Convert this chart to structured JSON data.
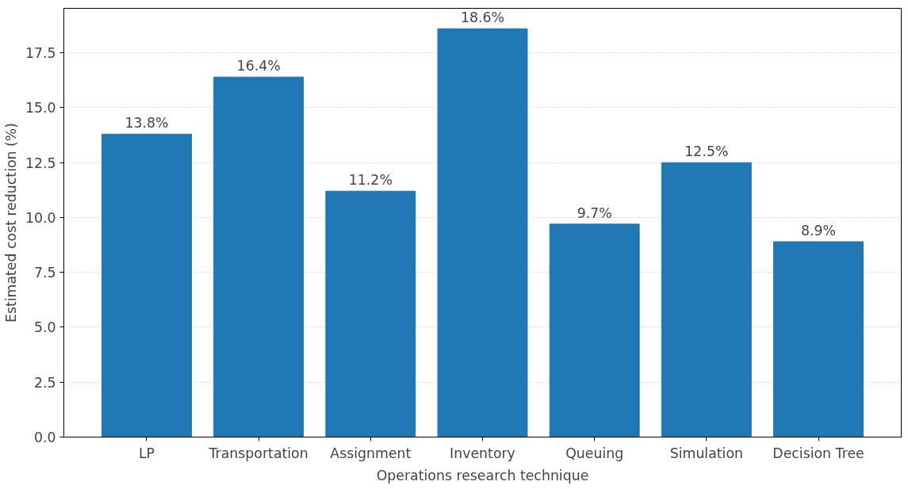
{
  "chart_data": {
    "type": "bar",
    "xlabel": "Operations research technique",
    "ylabel": "Estimated cost reduction (%)",
    "categories": [
      "LP",
      "Transportation",
      "Assignment",
      "Inventory",
      "Queuing",
      "Simulation",
      "Decision Tree"
    ],
    "values": [
      13.8,
      16.4,
      11.2,
      18.6,
      9.7,
      12.5,
      8.9
    ],
    "value_labels": [
      "13.8%",
      "16.4%",
      "11.2%",
      "18.6%",
      "9.7%",
      "12.5%",
      "8.9%"
    ],
    "color": "#1f77b4",
    "ylim": [
      0,
      19.53
    ],
    "yticks": [
      {
        "value": 0,
        "label": "0.0"
      },
      {
        "value": 2.5,
        "label": "2.5"
      },
      {
        "value": 5,
        "label": "5.0"
      },
      {
        "value": 7.5,
        "label": "7.5"
      },
      {
        "value": 10,
        "label": "10.0"
      },
      {
        "value": 12.5,
        "label": "12.5"
      },
      {
        "value": 15,
        "label": "15.0"
      },
      {
        "value": 17.5,
        "label": "17.5"
      }
    ],
    "grid": "y"
  }
}
